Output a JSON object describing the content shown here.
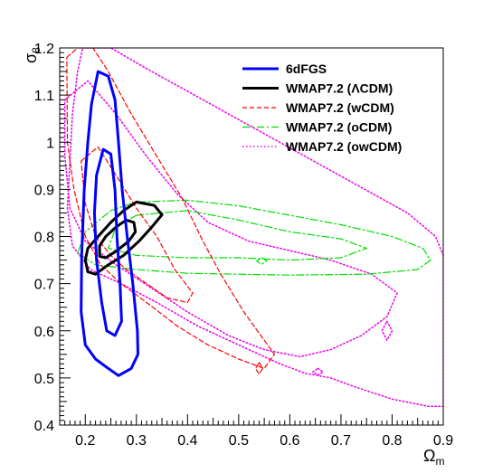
{
  "chart_data": {
    "type": "contour",
    "xlabel": "Ω",
    "xlabel_sub": "m",
    "ylabel": "σ",
    "ylabel_sub": "8",
    "xlim": [
      0.15,
      0.9
    ],
    "ylim": [
      0.4,
      1.2
    ],
    "x_ticks": [
      {
        "value": 0.2,
        "label": "0.2"
      },
      {
        "value": 0.3,
        "label": "0.3"
      },
      {
        "value": 0.4,
        "label": "0.4"
      },
      {
        "value": 0.5,
        "label": "0.5"
      },
      {
        "value": 0.6,
        "label": "0.6"
      },
      {
        "value": 0.7,
        "label": "0.7"
      },
      {
        "value": 0.8,
        "label": "0.8"
      },
      {
        "value": 0.9,
        "label": "0.9"
      }
    ],
    "y_ticks": [
      {
        "value": 0.4,
        "label": "0.4"
      },
      {
        "value": 0.5,
        "label": "0.5"
      },
      {
        "value": 0.6,
        "label": "0.6"
      },
      {
        "value": 0.7,
        "label": "0.7"
      },
      {
        "value": 0.8,
        "label": "0.8"
      },
      {
        "value": 0.9,
        "label": "0.9"
      },
      {
        "value": 1.0,
        "label": "1"
      },
      {
        "value": 1.1,
        "label": "1.1"
      },
      {
        "value": 1.2,
        "label": "1.2"
      }
    ],
    "legend_position": "top-right",
    "series": [
      {
        "name": "6dFGS",
        "color": "#0000ff",
        "style": "solid",
        "width": 3,
        "contours": [
          [
            [
              0.225,
              1.15
            ],
            [
              0.245,
              1.14
            ],
            [
              0.258,
              1.09
            ],
            [
              0.265,
              1.0
            ],
            [
              0.272,
              0.9
            ],
            [
              0.282,
              0.8
            ],
            [
              0.293,
              0.7
            ],
            [
              0.302,
              0.6
            ],
            [
              0.303,
              0.55
            ],
            [
              0.29,
              0.52
            ],
            [
              0.265,
              0.505
            ],
            [
              0.245,
              0.52
            ],
            [
              0.22,
              0.54
            ],
            [
              0.2,
              0.57
            ],
            [
              0.192,
              0.64
            ],
            [
              0.193,
              0.76
            ],
            [
              0.198,
              0.9
            ],
            [
              0.205,
              1.0
            ],
            [
              0.212,
              1.08
            ]
          ],
          [
            [
              0.235,
              0.985
            ],
            [
              0.25,
              0.975
            ],
            [
              0.258,
              0.9
            ],
            [
              0.262,
              0.8
            ],
            [
              0.268,
              0.7
            ],
            [
              0.271,
              0.62
            ],
            [
              0.258,
              0.59
            ],
            [
              0.242,
              0.6
            ],
            [
              0.232,
              0.66
            ],
            [
              0.222,
              0.75
            ],
            [
              0.218,
              0.85
            ],
            [
              0.222,
              0.93
            ]
          ]
        ]
      },
      {
        "name": "WMAP7.2 (ΛCDM)",
        "color": "#000000",
        "style": "solid",
        "width": 3,
        "contours": [
          [
            [
              0.3,
              0.873
            ],
            [
              0.335,
              0.866
            ],
            [
              0.35,
              0.846
            ],
            [
              0.33,
              0.82
            ],
            [
              0.305,
              0.79
            ],
            [
              0.275,
              0.76
            ],
            [
              0.245,
              0.74
            ],
            [
              0.22,
              0.72
            ],
            [
              0.205,
              0.725
            ],
            [
              0.2,
              0.75
            ],
            [
              0.205,
              0.775
            ],
            [
              0.225,
              0.8
            ],
            [
              0.25,
              0.83
            ],
            [
              0.275,
              0.855
            ]
          ],
          [
            [
              0.28,
              0.835
            ],
            [
              0.295,
              0.83
            ],
            [
              0.298,
              0.81
            ],
            [
              0.285,
              0.79
            ],
            [
              0.262,
              0.77
            ],
            [
              0.24,
              0.755
            ],
            [
              0.228,
              0.758
            ],
            [
              0.228,
              0.78
            ],
            [
              0.24,
              0.8
            ],
            [
              0.26,
              0.82
            ]
          ]
        ]
      },
      {
        "name": "WMAP7.2 (wCDM)",
        "color": "#ff0000",
        "style": "dashed",
        "width": 1.2,
        "contours": [
          [
            [
              0.164,
              1.18
            ],
            [
              0.185,
              1.2
            ],
            [
              0.215,
              1.2
            ],
            [
              0.245,
              1.15
            ],
            [
              0.29,
              1.06
            ],
            [
              0.34,
              0.97
            ],
            [
              0.39,
              0.88
            ],
            [
              0.43,
              0.79
            ],
            [
              0.465,
              0.72
            ],
            [
              0.51,
              0.64
            ],
            [
              0.55,
              0.58
            ],
            [
              0.57,
              0.55
            ],
            [
              0.55,
              0.52
            ],
            [
              0.5,
              0.54
            ],
            [
              0.44,
              0.57
            ],
            [
              0.38,
              0.61
            ],
            [
              0.32,
              0.66
            ],
            [
              0.27,
              0.7
            ],
            [
              0.23,
              0.74
            ],
            [
              0.2,
              0.8
            ],
            [
              0.178,
              0.9
            ],
            [
              0.165,
              1.0
            ]
          ],
          [
            [
              0.192,
              0.96
            ],
            [
              0.225,
              0.99
            ],
            [
              0.26,
              0.93
            ],
            [
              0.3,
              0.86
            ],
            [
              0.34,
              0.8
            ],
            [
              0.375,
              0.73
            ],
            [
              0.41,
              0.68
            ],
            [
              0.4,
              0.66
            ],
            [
              0.36,
              0.67
            ],
            [
              0.32,
              0.7
            ],
            [
              0.28,
              0.73
            ],
            [
              0.25,
              0.76
            ],
            [
              0.22,
              0.8
            ],
            [
              0.2,
              0.87
            ]
          ],
          [
            [
              0.54,
              0.533
            ],
            [
              0.547,
              0.52
            ],
            [
              0.54,
              0.508
            ],
            [
              0.533,
              0.52
            ]
          ]
        ]
      },
      {
        "name": "WMAP7.2 (oCDM)",
        "color": "#00dd00",
        "style": "dashdot",
        "width": 1.2,
        "contours": [
          [
            [
              0.25,
              0.855
            ],
            [
              0.3,
              0.873
            ],
            [
              0.4,
              0.877
            ],
            [
              0.5,
              0.865
            ],
            [
              0.6,
              0.845
            ],
            [
              0.7,
              0.825
            ],
            [
              0.8,
              0.8
            ],
            [
              0.86,
              0.775
            ],
            [
              0.875,
              0.75
            ],
            [
              0.85,
              0.73
            ],
            [
              0.75,
              0.72
            ],
            [
              0.6,
              0.718
            ],
            [
              0.5,
              0.72
            ],
            [
              0.4,
              0.722
            ],
            [
              0.3,
              0.73
            ],
            [
              0.22,
              0.74
            ],
            [
              0.185,
              0.765
            ],
            [
              0.2,
              0.81
            ]
          ],
          [
            [
              0.3,
              0.845
            ],
            [
              0.4,
              0.855
            ],
            [
              0.5,
              0.835
            ],
            [
              0.6,
              0.81
            ],
            [
              0.7,
              0.795
            ],
            [
              0.75,
              0.775
            ],
            [
              0.7,
              0.755
            ],
            [
              0.6,
              0.75
            ],
            [
              0.5,
              0.755
            ],
            [
              0.4,
              0.755
            ],
            [
              0.3,
              0.76
            ],
            [
              0.245,
              0.775
            ],
            [
              0.26,
              0.82
            ]
          ],
          [
            [
              0.545,
              0.755
            ],
            [
              0.555,
              0.748
            ],
            [
              0.545,
              0.741
            ],
            [
              0.535,
              0.748
            ]
          ]
        ]
      },
      {
        "name": "WMAP7.2 (owCDM)",
        "color": "#ee00ee",
        "style": "dotted",
        "width": 1.5,
        "contours": [
          [
            [
              0.195,
              1.2
            ],
            [
              0.25,
              1.2
            ],
            [
              0.33,
              1.15
            ],
            [
              0.43,
              1.09
            ],
            [
              0.53,
              1.03
            ],
            [
              0.63,
              0.97
            ],
            [
              0.73,
              0.91
            ],
            [
              0.83,
              0.85
            ],
            [
              0.885,
              0.8
            ],
            [
              0.9,
              0.76
            ],
            [
              0.9,
              0.6
            ],
            [
              0.9,
              0.5
            ],
            [
              0.9,
              0.44
            ],
            [
              0.87,
              0.44
            ],
            [
              0.8,
              0.455
            ],
            [
              0.73,
              0.48
            ],
            [
              0.68,
              0.5
            ],
            [
              0.63,
              0.51
            ],
            [
              0.58,
              0.53
            ],
            [
              0.5,
              0.57
            ],
            [
              0.42,
              0.61
            ],
            [
              0.34,
              0.66
            ],
            [
              0.27,
              0.7
            ],
            [
              0.21,
              0.73
            ],
            [
              0.175,
              0.78
            ],
            [
              0.165,
              0.86
            ],
            [
              0.17,
              0.96
            ],
            [
              0.175,
              1.06
            ],
            [
              0.185,
              1.15
            ]
          ],
          [
            [
              0.16,
              1.09
            ],
            [
              0.205,
              1.13
            ],
            [
              0.26,
              1.06
            ],
            [
              0.32,
              0.97
            ],
            [
              0.38,
              0.89
            ],
            [
              0.44,
              0.83
            ],
            [
              0.52,
              0.79
            ],
            [
              0.6,
              0.77
            ],
            [
              0.68,
              0.75
            ],
            [
              0.76,
              0.72
            ],
            [
              0.81,
              0.68
            ],
            [
              0.79,
              0.63
            ],
            [
              0.74,
              0.59
            ],
            [
              0.68,
              0.56
            ],
            [
              0.62,
              0.545
            ],
            [
              0.55,
              0.56
            ],
            [
              0.48,
              0.59
            ],
            [
              0.4,
              0.64
            ],
            [
              0.33,
              0.69
            ],
            [
              0.26,
              0.74
            ],
            [
              0.2,
              0.79
            ],
            [
              0.17,
              0.86
            ],
            [
              0.16,
              0.97
            ]
          ],
          [
            [
              0.79,
              0.62
            ],
            [
              0.8,
              0.6
            ],
            [
              0.79,
              0.58
            ],
            [
              0.78,
              0.6
            ]
          ],
          [
            [
              0.655,
              0.52
            ],
            [
              0.665,
              0.513
            ],
            [
              0.655,
              0.506
            ],
            [
              0.645,
              0.513
            ]
          ]
        ]
      }
    ]
  }
}
